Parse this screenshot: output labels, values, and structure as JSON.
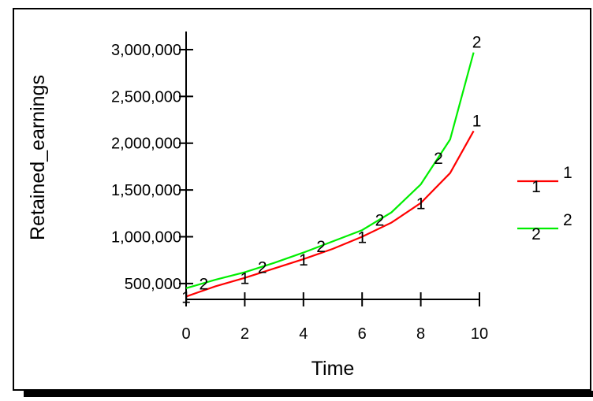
{
  "chart_data": {
    "type": "line",
    "title": "",
    "xlabel": "Time",
    "ylabel": "Retained_earnings",
    "xlim": [
      0,
      10
    ],
    "ylim": [
      330000,
      3000000
    ],
    "grid": false,
    "legend_position": "right",
    "x_ticks": [
      0,
      2,
      4,
      6,
      8,
      10
    ],
    "x_tick_labels": [
      "0",
      "2",
      "4",
      "6",
      "8",
      "10"
    ],
    "y_ticks": [
      500000,
      1000000,
      1500000,
      2000000,
      2500000,
      3000000
    ],
    "y_tick_labels": [
      "500,000",
      "1,000,000",
      "1,500,000",
      "2,000,000",
      "2,500,000",
      "3,000,000"
    ],
    "x": [
      0,
      1,
      2,
      3,
      4,
      5,
      6,
      7,
      8,
      9,
      9.8
    ],
    "series": [
      {
        "name": "1",
        "marker": "1",
        "color": "#ff0000",
        "values": [
          360000,
          470000,
          560000,
          660000,
          760000,
          870000,
          1000000,
          1150000,
          1360000,
          1680000,
          2130000
        ],
        "marker_x": [
          0,
          2,
          4,
          6,
          8,
          9.8
        ]
      },
      {
        "name": "2",
        "marker": "2",
        "color": "#00ee00",
        "values": [
          450000,
          540000,
          620000,
          720000,
          830000,
          950000,
          1070000,
          1260000,
          1560000,
          2040000,
          2970000
        ],
        "marker_x": [
          0.6,
          2.6,
          4.6,
          6.6,
          8.6,
          9.8
        ]
      }
    ]
  }
}
